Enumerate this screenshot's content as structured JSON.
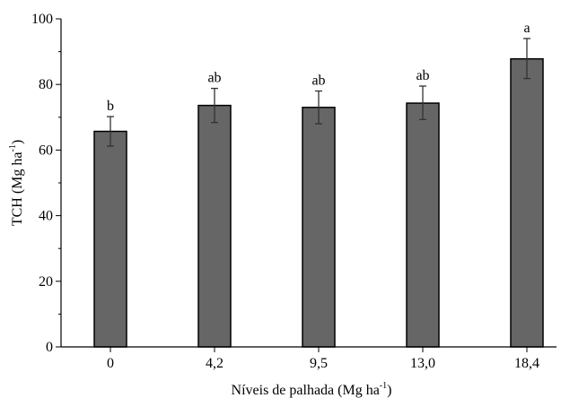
{
  "chart_data": {
    "type": "bar",
    "categories": [
      "0",
      "4,2",
      "9,5",
      "13,0",
      "18,4"
    ],
    "values": [
      65.7,
      73.6,
      73.0,
      74.3,
      87.8
    ],
    "error_high": [
      70.2,
      78.8,
      78.0,
      79.5,
      94.0
    ],
    "error_low": [
      61.2,
      68.4,
      68.0,
      69.3,
      81.8
    ],
    "significance_labels": [
      "b",
      "ab",
      "ab",
      "ab",
      "a"
    ],
    "xlabel": "Níveis de palhada (Mg ha",
    "xlabel_sup": "-1",
    "xlabel_suffix": ")",
    "ylabel": "TCH (Mg ha",
    "ylabel_sup": "-1",
    "ylabel_suffix": ")",
    "ylim": [
      0,
      100
    ],
    "yticks": [
      0,
      20,
      40,
      60,
      80,
      100
    ],
    "grid": false,
    "bar_color": "#666666",
    "bar_edge_color": "#000000"
  }
}
